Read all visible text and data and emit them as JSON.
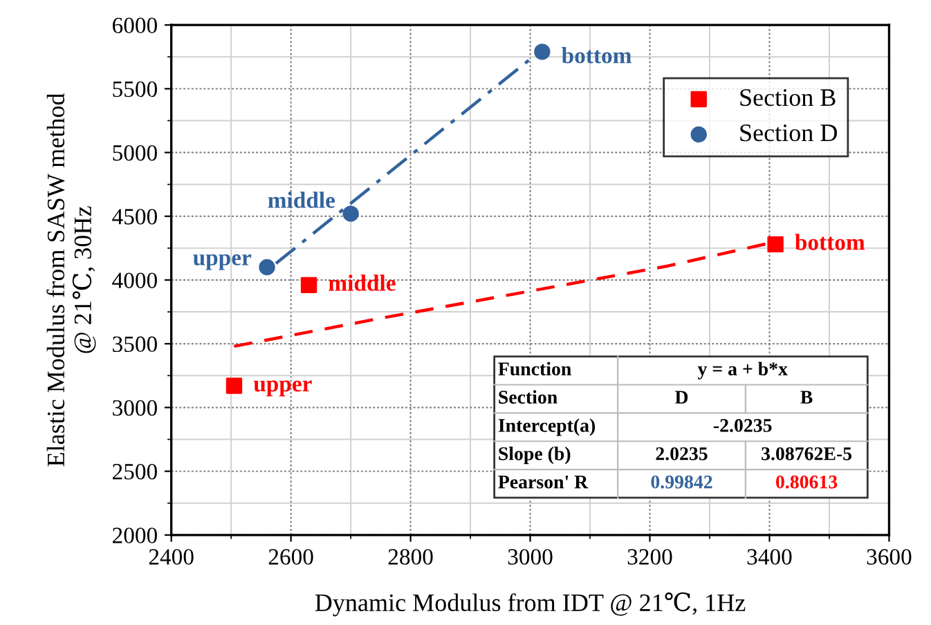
{
  "chart_data": {
    "type": "scatter",
    "xlabel": "Dynamic Modulus from IDT @ 21℃, 1Hz",
    "ylabel": "Elastic Modulus from SASW method\n@ 21℃, 30Hz",
    "xlim": [
      2400,
      3600
    ],
    "xticks": [
      2400,
      2600,
      2800,
      3000,
      3200,
      3400,
      3600
    ],
    "ylim": [
      2000,
      6000
    ],
    "yticks": [
      2000,
      2500,
      3000,
      3500,
      4000,
      4500,
      5000,
      5500,
      6000
    ],
    "grid": true,
    "legend": "top right",
    "series": [
      {
        "name": "Section B",
        "marker": "square",
        "color": "#ff0000",
        "x": [
          2505,
          2630,
          3410
        ],
        "values": [
          3170,
          3960,
          4280
        ]
      },
      {
        "name": "Section D",
        "marker": "circle",
        "color": "#33639c",
        "x": [
          2560,
          2700,
          3020
        ],
        "values": [
          4100,
          4520,
          5790
        ]
      },
      {
        "type": "line",
        "line_style": "dashed",
        "color": "#ff0000",
        "x": [
          2505,
          2750,
          3020,
          3230,
          3410
        ],
        "values": [
          3480,
          3700,
          3930,
          4110,
          4300
        ]
      },
      {
        "type": "line",
        "line_style": "dashdot",
        "color": "#33639c",
        "x": [
          2575,
          3010
        ],
        "values": [
          4130,
          5770
        ]
      }
    ],
    "annotations": [
      {
        "text": "upper",
        "x": 2505,
        "y": 3170
      },
      {
        "text": "middle",
        "x": 2630,
        "y": 3960
      },
      {
        "text": "bottom",
        "x": 3410,
        "y": 4280
      },
      {
        "text": "upper",
        "x": 2560,
        "y": 4100
      },
      {
        "text": "middle",
        "x": 2700,
        "y": 4520
      },
      {
        "text": "bottom",
        "x": 3020,
        "y": 5790
      },
      "Function",
      "y = a + b*x",
      "Section",
      "D",
      "B",
      "Intercept(a)",
      "-2.0235",
      "Slope (b)",
      "2.0235",
      "3.08762E-5",
      "Pearson' R",
      "0.99842",
      "0.80613"
    ]
  }
}
